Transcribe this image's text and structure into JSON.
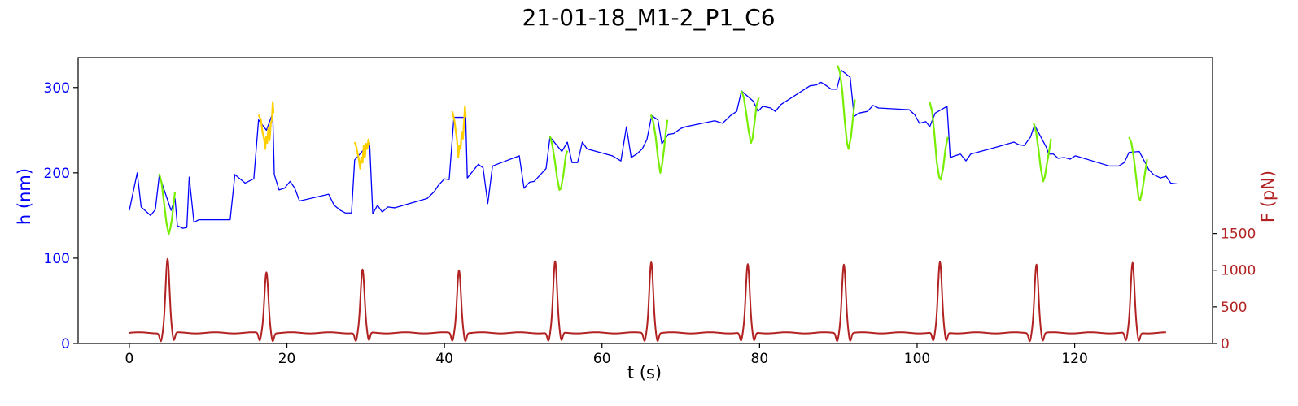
{
  "chart_data": {
    "type": "line",
    "title": "21-01-18_M1-2_P1_C6",
    "xlabel": "t (s)",
    "ylabel_left": "h (nm)",
    "ylabel_right": "F (pN)",
    "xlim": [
      -6.5,
      137.5
    ],
    "ylim_left": [
      0,
      335
    ],
    "ylim_right": [
      0,
      3900
    ],
    "x_ticks": [
      0,
      20,
      40,
      60,
      80,
      100,
      120
    ],
    "y_left_ticks": [
      0,
      100,
      200,
      300
    ],
    "y_right_ticks": [
      0,
      500,
      1000,
      1500
    ],
    "colors": {
      "height": "#0000ff",
      "height_cycle_yellow": "#ffd000",
      "height_cycle_green": "#77ee00",
      "force": "#b22222"
    },
    "series": [
      {
        "axis": "left",
        "color": "#0000ff",
        "points": [
          [
            0,
            156
          ],
          [
            1,
            200
          ],
          [
            1.5,
            160
          ],
          [
            2.7,
            150
          ],
          [
            3.3,
            157
          ],
          [
            3.8,
            197
          ],
          [
            5.3,
            156
          ],
          [
            5.8,
            170
          ],
          [
            6.1,
            138
          ],
          [
            6.8,
            135
          ],
          [
            7.3,
            136
          ],
          [
            7.6,
            195
          ],
          [
            8.2,
            142
          ],
          [
            8.8,
            145
          ],
          [
            12.8,
            145
          ],
          [
            13.4,
            198
          ],
          [
            14.7,
            188
          ],
          [
            15.8,
            193
          ],
          [
            16.4,
            262
          ],
          [
            17.4,
            250
          ],
          [
            18.2,
            270
          ],
          [
            18.4,
            198
          ],
          [
            19,
            180
          ],
          [
            19.7,
            182
          ],
          [
            20.4,
            190
          ],
          [
            21,
            182
          ],
          [
            21.6,
            167
          ],
          [
            25.3,
            175
          ],
          [
            26,
            162
          ],
          [
            26.8,
            156
          ],
          [
            27.4,
            153
          ],
          [
            28.2,
            153
          ],
          [
            28.6,
            215
          ],
          [
            30.5,
            235
          ],
          [
            30.9,
            152
          ],
          [
            31.5,
            162
          ],
          [
            32.1,
            154
          ],
          [
            32.8,
            160
          ],
          [
            33.7,
            159
          ],
          [
            37.8,
            170
          ],
          [
            38.7,
            178
          ],
          [
            39.2,
            185
          ],
          [
            40,
            193
          ],
          [
            40.6,
            192
          ],
          [
            41.2,
            265
          ],
          [
            42.7,
            265
          ],
          [
            42.9,
            194
          ],
          [
            44.3,
            210
          ],
          [
            44.9,
            206
          ],
          [
            45.5,
            164
          ],
          [
            46.1,
            208
          ],
          [
            49.5,
            220
          ],
          [
            50.1,
            182
          ],
          [
            50.8,
            189
          ],
          [
            51.4,
            190
          ],
          [
            52.9,
            205
          ],
          [
            53.4,
            242
          ],
          [
            54.9,
            225
          ],
          [
            55.6,
            236
          ],
          [
            56.2,
            212
          ],
          [
            56.9,
            212
          ],
          [
            57.5,
            236
          ],
          [
            58.1,
            228
          ],
          [
            61.3,
            220
          ],
          [
            62.4,
            214
          ],
          [
            63.1,
            254
          ],
          [
            63.7,
            218
          ],
          [
            64.4,
            222
          ],
          [
            65.1,
            228
          ],
          [
            65.7,
            239
          ],
          [
            66.3,
            267
          ],
          [
            67.1,
            262
          ],
          [
            67.6,
            234
          ],
          [
            68.4,
            245
          ],
          [
            69.1,
            246
          ],
          [
            70,
            252
          ],
          [
            70.6,
            254
          ],
          [
            74.3,
            261
          ],
          [
            75.3,
            258
          ],
          [
            76.3,
            267
          ],
          [
            77.1,
            272
          ],
          [
            77.7,
            296
          ],
          [
            79.2,
            284
          ],
          [
            79.8,
            272
          ],
          [
            80.4,
            278
          ],
          [
            81.4,
            276
          ],
          [
            82,
            272
          ],
          [
            82.7,
            280
          ],
          [
            86.4,
            302
          ],
          [
            87.2,
            303
          ],
          [
            87.8,
            306
          ],
          [
            88.5,
            302
          ],
          [
            89.1,
            298
          ],
          [
            89.8,
            298
          ],
          [
            90.4,
            320
          ],
          [
            91.5,
            312
          ],
          [
            92,
            266
          ],
          [
            92.6,
            270
          ],
          [
            93.7,
            272
          ],
          [
            94.4,
            279
          ],
          [
            95.1,
            276
          ],
          [
            99,
            274
          ],
          [
            99.7,
            268
          ],
          [
            100.3,
            258
          ],
          [
            101.1,
            260
          ],
          [
            101.6,
            254
          ],
          [
            102.3,
            270
          ],
          [
            103.8,
            278
          ],
          [
            104.2,
            218
          ],
          [
            104.8,
            220
          ],
          [
            105.5,
            222
          ],
          [
            106.2,
            214
          ],
          [
            106.8,
            222
          ],
          [
            110,
            230
          ],
          [
            112.3,
            236
          ],
          [
            112.9,
            233
          ],
          [
            113.6,
            232
          ],
          [
            114.4,
            242
          ],
          [
            114.9,
            256
          ],
          [
            116.4,
            230
          ],
          [
            116.7,
            222
          ],
          [
            117.3,
            222
          ],
          [
            117.9,
            217
          ],
          [
            118.7,
            218
          ],
          [
            119.4,
            216
          ],
          [
            120.1,
            220
          ],
          [
            124.4,
            208
          ],
          [
            125.6,
            208
          ],
          [
            126.3,
            212
          ],
          [
            126.9,
            224
          ],
          [
            128.2,
            225
          ],
          [
            129.4,
            204
          ],
          [
            130,
            198
          ],
          [
            130.9,
            194
          ],
          [
            131.6,
            196
          ],
          [
            132.2,
            188
          ],
          [
            133,
            187
          ]
        ]
      },
      {
        "axis": "left",
        "color": "#ffd000",
        "segments": [
          [
            [
              16.4,
              268
            ],
            [
              16.7,
              262
            ],
            [
              16.9,
              248
            ],
            [
              17.1,
              240
            ],
            [
              17.25,
              228
            ],
            [
              17.35,
              242
            ],
            [
              17.5,
              235
            ],
            [
              17.65,
              253
            ],
            [
              17.8,
              238
            ],
            [
              17.95,
              258
            ],
            [
              18.1,
              262
            ],
            [
              18.2,
              283
            ],
            [
              18.3,
              270
            ]
          ],
          [
            [
              28.6,
              236
            ],
            [
              28.8,
              231
            ],
            [
              29,
              222
            ],
            [
              29.15,
              215
            ],
            [
              29.3,
              205
            ],
            [
              29.45,
              218
            ],
            [
              29.6,
              212
            ],
            [
              29.75,
              232
            ],
            [
              29.9,
              218
            ],
            [
              30.05,
              234
            ],
            [
              30.2,
              228
            ],
            [
              30.35,
              239
            ],
            [
              30.5,
              232
            ]
          ],
          [
            [
              41,
              272
            ],
            [
              41.25,
              262
            ],
            [
              41.45,
              248
            ],
            [
              41.6,
              238
            ],
            [
              41.75,
              218
            ],
            [
              41.9,
              232
            ],
            [
              42.05,
              228
            ],
            [
              42.2,
              248
            ],
            [
              42.35,
              240
            ],
            [
              42.5,
              262
            ],
            [
              42.6,
              278
            ],
            [
              42.7,
              265
            ]
          ]
        ]
      },
      {
        "axis": "left",
        "color": "#77ee00",
        "segments": [
          [
            [
              3.8,
              199
            ],
            [
              4.1,
              188
            ],
            [
              4.4,
              165
            ],
            [
              4.7,
              142
            ],
            [
              5,
              128
            ],
            [
              5.2,
              135
            ],
            [
              5.4,
              145
            ],
            [
              5.6,
              162
            ],
            [
              5.8,
              178
            ]
          ],
          [
            [
              53.4,
              243
            ],
            [
              53.7,
              232
            ],
            [
              54,
              215
            ],
            [
              54.3,
              194
            ],
            [
              54.6,
              180
            ],
            [
              54.8,
              182
            ],
            [
              55.1,
              198
            ],
            [
              55.4,
              220
            ],
            [
              55.6,
              226
            ]
          ],
          [
            [
              66.2,
              268
            ],
            [
              66.5,
              260
            ],
            [
              66.8,
              243
            ],
            [
              67.1,
              218
            ],
            [
              67.4,
              200
            ],
            [
              67.6,
              208
            ],
            [
              67.9,
              230
            ],
            [
              68.1,
              248
            ],
            [
              68.3,
              262
            ]
          ],
          [
            [
              77.7,
              296
            ],
            [
              78,
              288
            ],
            [
              78.3,
              270
            ],
            [
              78.6,
              250
            ],
            [
              78.9,
              235
            ],
            [
              79.1,
              240
            ],
            [
              79.4,
              262
            ],
            [
              79.6,
              278
            ],
            [
              79.9,
              288
            ]
          ],
          [
            [
              89.9,
              326
            ],
            [
              90.2,
              318
            ],
            [
              90.5,
              296
            ],
            [
              90.8,
              262
            ],
            [
              91.1,
              235
            ],
            [
              91.3,
              228
            ],
            [
              91.6,
              242
            ],
            [
              91.9,
              268
            ],
            [
              92.1,
              286
            ]
          ],
          [
            [
              101.6,
              283
            ],
            [
              101.9,
              272
            ],
            [
              102.2,
              245
            ],
            [
              102.5,
              212
            ],
            [
              102.8,
              195
            ],
            [
              103,
              192
            ],
            [
              103.3,
              205
            ],
            [
              103.6,
              228
            ],
            [
              103.9,
              242
            ]
          ],
          [
            [
              114.8,
              258
            ],
            [
              115.1,
              248
            ],
            [
              115.4,
              228
            ],
            [
              115.7,
              205
            ],
            [
              116,
              190
            ],
            [
              116.2,
              195
            ],
            [
              116.5,
              212
            ],
            [
              116.8,
              228
            ],
            [
              117,
              240
            ]
          ],
          [
            [
              126.9,
              242
            ],
            [
              127.2,
              235
            ],
            [
              127.5,
              218
            ],
            [
              127.8,
              195
            ],
            [
              128.1,
              172
            ],
            [
              128.3,
              168
            ],
            [
              128.6,
              180
            ],
            [
              128.9,
              198
            ],
            [
              129.2,
              216
            ]
          ]
        ]
      },
      {
        "axis": "right",
        "color": "#b22222",
        "baseline": 145,
        "peak_times": [
          4.85,
          17.4,
          29.6,
          41.85,
          54.05,
          66.25,
          78.5,
          90.7,
          102.9,
          115.15,
          127.35
        ],
        "peak_values": [
          1155,
          975,
          1005,
          1005,
          1115,
          1115,
          1075,
          1085,
          1105,
          1085,
          1095
        ],
        "x_range": [
          0,
          131.6
        ]
      }
    ]
  }
}
